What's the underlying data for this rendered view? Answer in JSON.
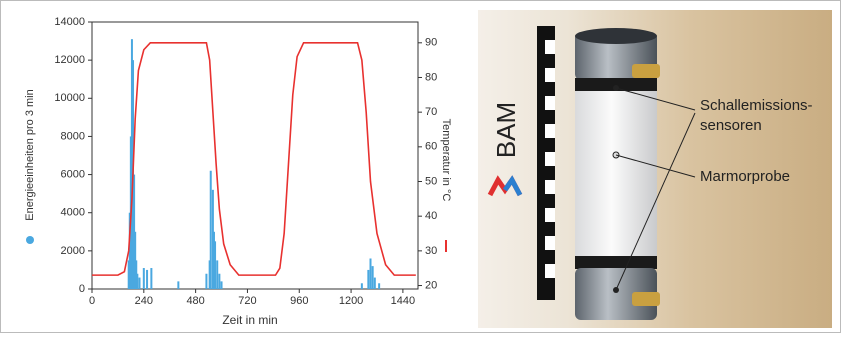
{
  "chart_data": {
    "type": "combo",
    "x_label": "Zeit in min",
    "y_label": "Energieeinheiten pro 3 min",
    "y2_label": "Temperatur in °C",
    "xlim": [
      0,
      1510
    ],
    "xticks": [
      0,
      240,
      480,
      720,
      960,
      1200,
      1440
    ],
    "ylim": [
      0,
      14000
    ],
    "yticks": [
      0,
      2000,
      4000,
      6000,
      8000,
      10000,
      12000,
      14000
    ],
    "y2lim": [
      19,
      96
    ],
    "y2ticks": [
      20,
      30,
      40,
      50,
      60,
      70,
      80,
      90
    ],
    "series": [
      {
        "type": "bar",
        "color": "#4aa8e0",
        "x": [
          170,
          175,
          180,
          185,
          190,
          195,
          200,
          205,
          210,
          220,
          240,
          255,
          275,
          400,
          530,
          545,
          550,
          560,
          565,
          570,
          580,
          590,
          600,
          1250,
          1280,
          1290,
          1300,
          1310,
          1330
        ],
        "values": [
          1500,
          4000,
          8000,
          13100,
          12000,
          6000,
          3000,
          1500,
          800,
          600,
          1100,
          1000,
          1100,
          400,
          800,
          1500,
          6200,
          5200,
          3000,
          2500,
          1500,
          800,
          400,
          300,
          1000,
          1600,
          1200,
          600,
          300
        ]
      },
      {
        "type": "line",
        "axis": "y2",
        "color": "#e8312f",
        "x": [
          0,
          120,
          150,
          170,
          185,
          200,
          215,
          240,
          270,
          500,
          530,
          545,
          560,
          575,
          590,
          610,
          640,
          680,
          720,
          850,
          870,
          890,
          910,
          930,
          950,
          980,
          1200,
          1230,
          1250,
          1270,
          1290,
          1320,
          1360,
          1400,
          1500
        ],
        "values": [
          23,
          23,
          24,
          30,
          45,
          68,
          82,
          88,
          90,
          90,
          90,
          85,
          70,
          55,
          42,
          32,
          26,
          23,
          23,
          23,
          25,
          35,
          55,
          75,
          86,
          90,
          90,
          90,
          85,
          70,
          50,
          35,
          26,
          23,
          23
        ]
      }
    ]
  },
  "photo": {
    "logo": "BAM",
    "annotations": [
      {
        "lines": [
          "Schallemissions-",
          "sensoren"
        ]
      },
      {
        "lines": [
          "Marmorprobe"
        ]
      }
    ]
  }
}
